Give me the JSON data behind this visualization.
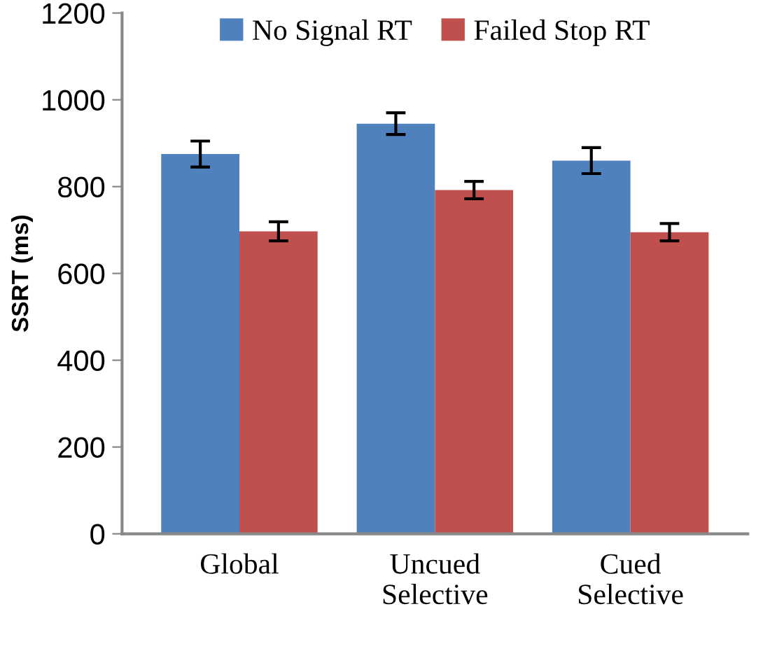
{
  "chart_data": {
    "type": "bar",
    "ylabel": "SSRT (ms)",
    "categories": [
      "Global",
      "Uncued\nSelective",
      "Cued\nSelective"
    ],
    "series": [
      {
        "name": "No Signal RT",
        "color": "#4f81bd",
        "values": [
          875,
          945,
          860
        ],
        "errors": [
          30,
          25,
          30
        ]
      },
      {
        "name": "Failed Stop RT",
        "color": "#c0504d",
        "values": [
          697,
          792,
          695
        ],
        "errors": [
          22,
          20,
          20
        ]
      }
    ],
    "ylim": [
      0,
      1200
    ],
    "yticks": [
      0,
      200,
      400,
      600,
      800,
      1000,
      1200
    ],
    "grid": false,
    "legend": "top"
  }
}
